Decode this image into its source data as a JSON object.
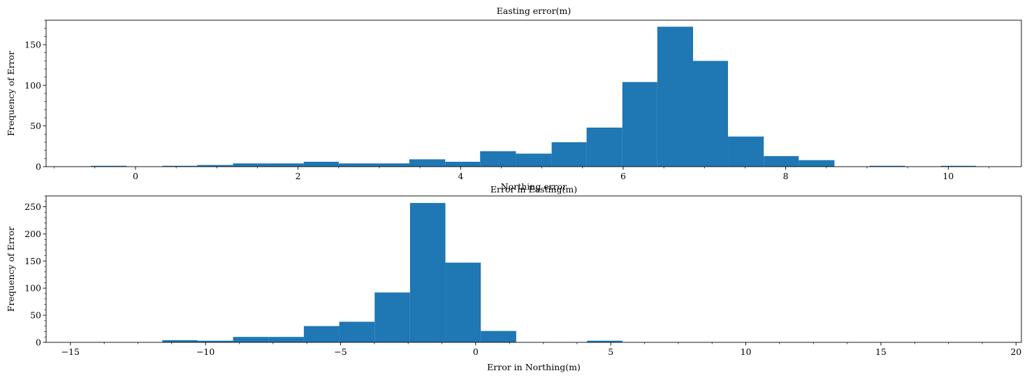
{
  "chart_data": [
    {
      "type": "histogram",
      "title": "Easting error(m)",
      "xlabel": "Error in Easting(m)",
      "ylabel": "Frequency of Error",
      "xlim": [
        -1.1,
        10.9
      ],
      "ylim": [
        0,
        180
      ],
      "xticks": [
        0,
        2,
        4,
        6,
        8,
        10
      ],
      "yticks": [
        0,
        50,
        100,
        150
      ],
      "bar_color": "#1f77b4",
      "bins": [
        {
          "x0": -0.55,
          "x1": -0.11,
          "value": 1
        },
        {
          "x0": -0.11,
          "x1": 0.33,
          "value": 0
        },
        {
          "x0": 0.33,
          "x1": 0.76,
          "value": 1
        },
        {
          "x0": 0.76,
          "x1": 1.2,
          "value": 2
        },
        {
          "x0": 1.2,
          "x1": 1.63,
          "value": 4
        },
        {
          "x0": 1.63,
          "x1": 2.07,
          "value": 4
        },
        {
          "x0": 2.07,
          "x1": 2.5,
          "value": 6
        },
        {
          "x0": 2.5,
          "x1": 2.94,
          "value": 4
        },
        {
          "x0": 2.94,
          "x1": 3.37,
          "value": 4
        },
        {
          "x0": 3.37,
          "x1": 3.81,
          "value": 9
        },
        {
          "x0": 3.81,
          "x1": 4.24,
          "value": 6
        },
        {
          "x0": 4.24,
          "x1": 4.68,
          "value": 19
        },
        {
          "x0": 4.68,
          "x1": 5.12,
          "value": 16
        },
        {
          "x0": 5.12,
          "x1": 5.55,
          "value": 30
        },
        {
          "x0": 5.55,
          "x1": 5.99,
          "value": 48
        },
        {
          "x0": 5.99,
          "x1": 6.42,
          "value": 104
        },
        {
          "x0": 6.42,
          "x1": 6.86,
          "value": 172
        },
        {
          "x0": 6.86,
          "x1": 7.29,
          "value": 130
        },
        {
          "x0": 7.29,
          "x1": 7.73,
          "value": 37
        },
        {
          "x0": 7.73,
          "x1": 8.16,
          "value": 13
        },
        {
          "x0": 8.16,
          "x1": 8.6,
          "value": 8
        },
        {
          "x0": 8.6,
          "x1": 9.03,
          "value": 0
        },
        {
          "x0": 9.03,
          "x1": 9.47,
          "value": 1
        },
        {
          "x0": 9.47,
          "x1": 9.91,
          "value": 0
        },
        {
          "x0": 9.91,
          "x1": 10.34,
          "value": 1
        }
      ]
    },
    {
      "type": "histogram",
      "title": "Northing error",
      "xlabel": "Error in Northing(m)",
      "ylabel": "Frequency of Error",
      "xlim": [
        -15.9,
        20.2
      ],
      "ylim": [
        0,
        270
      ],
      "xticks": [
        -15,
        -10,
        -5,
        0,
        5,
        10,
        15,
        20
      ],
      "xtick_labels": [
        "−15",
        "−10",
        "−5",
        "0",
        "5",
        "10",
        "15",
        "20"
      ],
      "yticks": [
        0,
        50,
        100,
        150,
        200,
        250
      ],
      "bar_color": "#1f77b4",
      "bins": [
        {
          "x0": -11.6,
          "x1": -10.3,
          "value": 4
        },
        {
          "x0": -10.3,
          "x1": -8.98,
          "value": 3
        },
        {
          "x0": -8.98,
          "x1": -7.67,
          "value": 10
        },
        {
          "x0": -7.67,
          "x1": -6.36,
          "value": 10
        },
        {
          "x0": -6.36,
          "x1": -5.05,
          "value": 30
        },
        {
          "x0": -5.05,
          "x1": -3.74,
          "value": 38
        },
        {
          "x0": -3.74,
          "x1": -2.43,
          "value": 92
        },
        {
          "x0": -2.43,
          "x1": -1.12,
          "value": 257
        },
        {
          "x0": -1.12,
          "x1": 0.19,
          "value": 147
        },
        {
          "x0": 0.19,
          "x1": 1.5,
          "value": 21
        },
        {
          "x0": 4.12,
          "x1": 5.43,
          "value": 3
        }
      ]
    }
  ]
}
